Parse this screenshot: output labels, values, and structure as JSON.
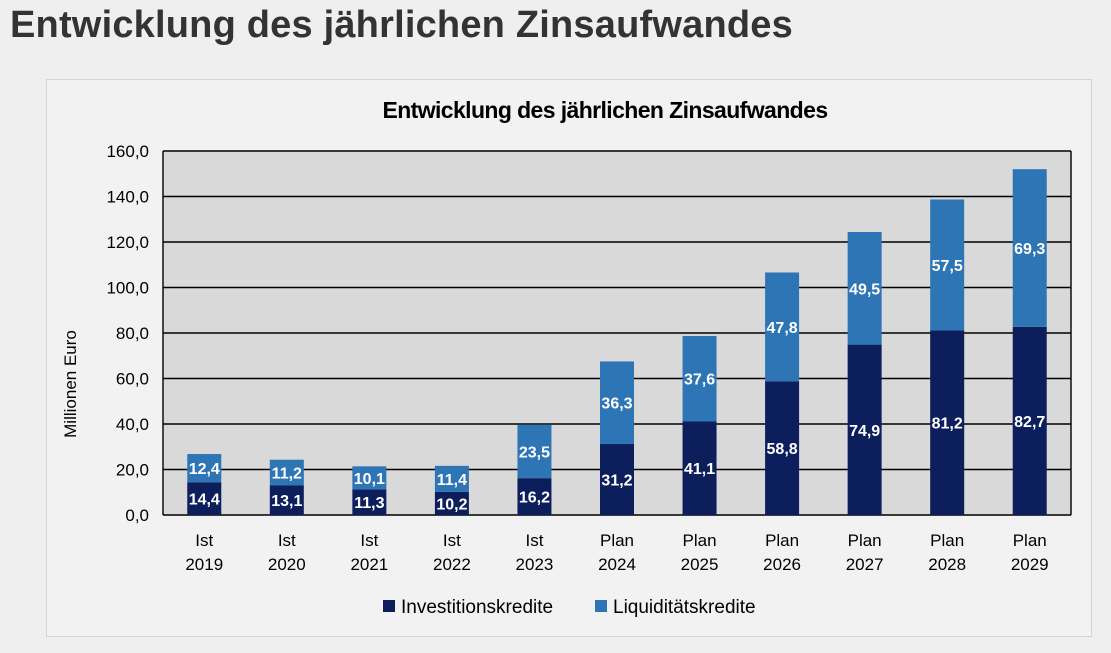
{
  "page": {
    "heading": "Entwicklung des jährlichen Zinsaufwandes"
  },
  "colors": {
    "invest": "#0c1f5c",
    "liquid": "#2e75b6",
    "plot_bg": "#d9d9d9",
    "grid": "#000000"
  },
  "chart_data": {
    "type": "bar",
    "stacked": true,
    "title": "Entwicklung des jährlichen Zinsaufwandes",
    "ylabel": "Millionen  Euro",
    "xlabel": "",
    "ylim": [
      0,
      160
    ],
    "yticks": [
      0,
      20,
      40,
      60,
      80,
      100,
      120,
      140,
      160
    ],
    "ytick_labels": [
      "0,0",
      "20,0",
      "40,0",
      "60,0",
      "80,0",
      "100,0",
      "120,0",
      "140,0",
      "160,0"
    ],
    "grid": true,
    "legend_position": "bottom",
    "categories": [
      [
        "Ist",
        "2019"
      ],
      [
        "Ist",
        "2020"
      ],
      [
        "Ist",
        "2021"
      ],
      [
        "Ist",
        "2022"
      ],
      [
        "Ist",
        "2023"
      ],
      [
        "Plan",
        "2024"
      ],
      [
        "Plan",
        "2025"
      ],
      [
        "Plan",
        "2026"
      ],
      [
        "Plan",
        "2027"
      ],
      [
        "Plan",
        "2028"
      ],
      [
        "Plan",
        "2029"
      ]
    ],
    "series": [
      {
        "name": "Investitionskredite",
        "color": "#0c1f5c",
        "values": [
          14.4,
          13.1,
          11.3,
          10.2,
          16.2,
          31.2,
          41.1,
          58.8,
          74.9,
          81.2,
          82.7
        ],
        "labels": [
          "14,4",
          "13,1",
          "11,3",
          "10,2",
          "16,2",
          "31,2",
          "41,1",
          "58,8",
          "74,9",
          "81,2",
          "82,7"
        ]
      },
      {
        "name": "Liquiditätskredite",
        "color": "#2e75b6",
        "values": [
          12.4,
          11.2,
          10.1,
          11.4,
          23.5,
          36.3,
          37.6,
          47.8,
          49.5,
          57.5,
          69.3
        ],
        "labels": [
          "12,4",
          "11,2",
          "10,1",
          "11,4",
          "23,5",
          "36,3",
          "37,6",
          "47,8",
          "49,5",
          "57,5",
          "69,3"
        ]
      }
    ]
  }
}
